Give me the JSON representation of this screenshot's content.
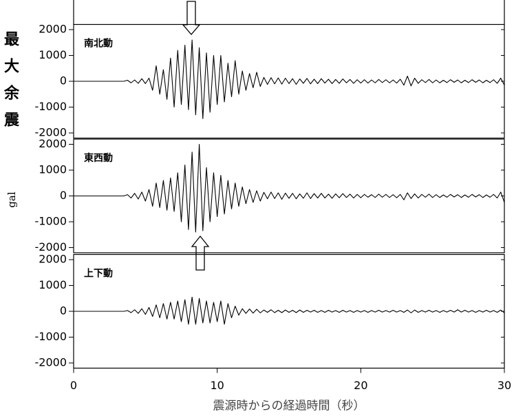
{
  "chart_data": {
    "type": "line",
    "title": "最大余震",
    "ylabel": "gal",
    "xlabel": "震源時からの経過時間（秒）",
    "xlim": [
      0,
      30
    ],
    "xticks": [
      0,
      10,
      20,
      30
    ],
    "ylim": [
      -2200,
      2200
    ],
    "yticks": [
      -2000,
      -1000,
      0,
      1000,
      2000
    ],
    "x": [
      0,
      0.25,
      0.5,
      0.75,
      1,
      1.25,
      1.5,
      1.75,
      2,
      2.25,
      2.5,
      2.75,
      3,
      3.25,
      3.5,
      3.75,
      4,
      4.25,
      4.5,
      4.75,
      5,
      5.25,
      5.5,
      5.75,
      6,
      6.25,
      6.5,
      6.75,
      7,
      7.25,
      7.5,
      7.75,
      8,
      8.25,
      8.5,
      8.75,
      9,
      9.25,
      9.5,
      9.75,
      10,
      10.25,
      10.5,
      10.75,
      11,
      11.25,
      11.5,
      11.75,
      12,
      12.25,
      12.5,
      12.75,
      13,
      13.25,
      13.5,
      13.75,
      14,
      14.25,
      14.5,
      14.75,
      15,
      15.25,
      15.5,
      15.75,
      16,
      16.25,
      16.5,
      16.75,
      17,
      17.25,
      17.5,
      17.75,
      18,
      18.25,
      18.5,
      18.75,
      19,
      19.25,
      19.5,
      19.75,
      20,
      20.25,
      20.5,
      20.75,
      21,
      21.25,
      21.5,
      21.75,
      22,
      22.25,
      22.5,
      22.75,
      23,
      23.25,
      23.5,
      23.75,
      24,
      24.25,
      24.5,
      24.75,
      25,
      25.25,
      25.5,
      25.75,
      26,
      26.25,
      26.5,
      26.75,
      27,
      27.25,
      27.5,
      27.75,
      28,
      28.25,
      28.5,
      28.75,
      29,
      29.25,
      29.5,
      29.75,
      30
    ],
    "series": [
      {
        "name": "南北動",
        "color": "#000000",
        "values": [
          0,
          0,
          0,
          0,
          0,
          0,
          0,
          0,
          0,
          0,
          0,
          0,
          0,
          0,
          0,
          40,
          -60,
          50,
          -80,
          100,
          -90,
          120,
          -350,
          600,
          -500,
          450,
          -700,
          900,
          -1000,
          1200,
          -900,
          1400,
          -1100,
          1600,
          -1300,
          1300,
          -1450,
          1100,
          -1200,
          1000,
          -900,
          1000,
          -800,
          700,
          -600,
          800,
          -500,
          400,
          -350,
          300,
          -250,
          350,
          -200,
          150,
          -120,
          140,
          -100,
          130,
          -110,
          120,
          -90,
          100,
          -120,
          90,
          -80,
          110,
          -100,
          80,
          -90,
          100,
          -70,
          80,
          -90,
          70,
          -80,
          90,
          -60,
          70,
          -80,
          60,
          -70,
          60,
          -70,
          50,
          -60,
          70,
          -50,
          60,
          -60,
          50,
          -70,
          80,
          -150,
          200,
          -180,
          120,
          -80,
          60,
          -50,
          70,
          -60,
          50,
          -60,
          40,
          -50,
          60,
          -40,
          50,
          -60,
          40,
          -50,
          60,
          -40,
          50,
          -60,
          40,
          -50,
          60,
          -80,
          120,
          -150
        ]
      },
      {
        "name": "東西動",
        "color": "#000000",
        "values": [
          0,
          0,
          0,
          0,
          0,
          0,
          0,
          0,
          0,
          0,
          0,
          0,
          0,
          0,
          0,
          50,
          -80,
          100,
          -120,
          150,
          -200,
          250,
          -400,
          500,
          -450,
          600,
          -550,
          700,
          -600,
          900,
          -1000,
          1200,
          -1300,
          1700,
          -1400,
          2000,
          -1350,
          1100,
          -1000,
          900,
          -800,
          800,
          -700,
          600,
          -500,
          500,
          -400,
          350,
          -300,
          250,
          -250,
          200,
          -200,
          140,
          -110,
          150,
          -100,
          120,
          -130,
          110,
          -90,
          100,
          -110,
          80,
          -90,
          120,
          -100,
          90,
          -80,
          100,
          -80,
          70,
          -90,
          80,
          -70,
          90,
          -60,
          70,
          -80,
          60,
          -70,
          60,
          -50,
          50,
          -60,
          70,
          -50,
          60,
          -60,
          50,
          -70,
          60,
          -150,
          120,
          -100,
          80,
          -80,
          60,
          -50,
          70,
          -60,
          50,
          -60,
          40,
          -50,
          60,
          -40,
          50,
          -60,
          40,
          -50,
          60,
          -40,
          50,
          -60,
          40,
          -50,
          60,
          -80,
          150,
          -250
        ]
      },
      {
        "name": "上下動",
        "color": "#000000",
        "values": [
          0,
          0,
          0,
          0,
          0,
          0,
          0,
          0,
          0,
          0,
          0,
          0,
          0,
          0,
          0,
          30,
          -50,
          60,
          -80,
          100,
          -120,
          150,
          -200,
          250,
          -250,
          300,
          -300,
          350,
          -300,
          400,
          -400,
          450,
          -500,
          550,
          -500,
          500,
          -450,
          400,
          -450,
          350,
          -400,
          400,
          -500,
          300,
          -250,
          200,
          -150,
          100,
          -80,
          90,
          -70,
          80,
          -60,
          50,
          -40,
          60,
          -50,
          40,
          -50,
          50,
          -40,
          40,
          -50,
          50,
          -40,
          40,
          -30,
          40,
          -40,
          30,
          -40,
          40,
          -30,
          30,
          -40,
          40,
          -30,
          30,
          -40,
          30,
          -30,
          30,
          -40,
          30,
          -30,
          40,
          -30,
          30,
          -30,
          40,
          -30,
          30,
          -40,
          50,
          -60,
          50,
          -40,
          30,
          -30,
          40,
          -30,
          30,
          -40,
          30,
          -30,
          40,
          -30,
          60,
          -30,
          40,
          -30,
          30,
          -40,
          30,
          -30,
          40,
          -30,
          30,
          -40,
          50,
          -60
        ]
      }
    ]
  }
}
